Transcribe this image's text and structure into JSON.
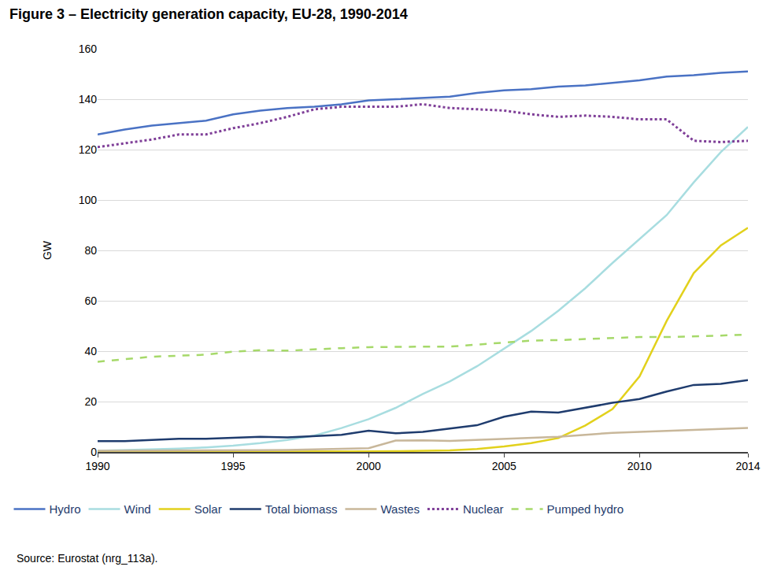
{
  "chart_data": {
    "type": "line",
    "title": "Figure 3 – Electricity generation capacity, EU-28, 1990-2014",
    "y_label": "GW",
    "annotations": [
      {
        "text": "Source: Eurostat (nrg_113a)."
      }
    ],
    "x": [
      1990,
      1991,
      1992,
      1993,
      1994,
      1995,
      1996,
      1997,
      1998,
      1999,
      2000,
      2001,
      2002,
      2003,
      2004,
      2005,
      2006,
      2007,
      2008,
      2009,
      2010,
      2011,
      2012,
      2013,
      2014
    ],
    "xlim": [
      1990,
      2014
    ],
    "xticks": [
      1990,
      1995,
      2000,
      2005,
      2010,
      2014
    ],
    "ylim": [
      0,
      160
    ],
    "yticks": [
      0,
      20,
      40,
      60,
      80,
      100,
      120,
      140,
      160
    ],
    "grid": true,
    "legend": "bottom",
    "series": [
      {
        "name": "Hydro",
        "color": "#4a72c4",
        "line_style": "solid",
        "values": [
          126,
          128,
          129.5,
          130.5,
          131.5,
          134,
          135.5,
          136.5,
          137,
          138,
          139.5,
          140,
          140.5,
          141,
          142.5,
          143.5,
          144,
          145,
          145.5,
          146.5,
          147.5,
          149,
          149.5,
          150.5,
          151
        ]
      },
      {
        "name": "Wind",
        "color": "#a8dde0",
        "line_style": "solid",
        "values": [
          0.5,
          0.7,
          1,
          1.3,
          1.8,
          2.5,
          3.5,
          4.8,
          6.5,
          9.5,
          13,
          17.5,
          23,
          28,
          34,
          41,
          48,
          56,
          65,
          75,
          84.5,
          94,
          107,
          119,
          129
        ]
      },
      {
        "name": "Solar",
        "color": "#e2d11c",
        "line_style": "solid",
        "values": [
          0,
          0,
          0,
          0,
          0,
          0,
          0,
          0,
          0,
          0.1,
          0.2,
          0.3,
          0.4,
          0.6,
          1.2,
          2.2,
          3.5,
          5.5,
          10.5,
          17,
          30,
          52,
          71,
          82,
          89
        ]
      },
      {
        "name": "Total biomass",
        "color": "#1f3c6e",
        "line_style": "solid",
        "values": [
          4.3,
          4.3,
          4.8,
          5.2,
          5.2,
          5.5,
          6,
          5.8,
          6.2,
          6.8,
          8.4,
          7.4,
          8,
          9.2,
          10.6,
          14,
          16,
          15.6,
          17.5,
          19.5,
          21,
          24,
          26.6,
          27,
          28.5
        ]
      },
      {
        "name": "Wastes",
        "color": "#c8b79a",
        "line_style": "solid",
        "values": [
          0.5,
          0.5,
          0.5,
          0.5,
          0.5,
          0.6,
          0.7,
          0.8,
          1,
          1.2,
          1.5,
          4.5,
          4.6,
          4.4,
          4.8,
          5.4,
          5.8,
          6,
          6.8,
          7.6,
          8,
          8.4,
          8.6,
          9.2,
          9.5
        ]
      },
      {
        "name": "Nuclear",
        "color": "#7f3f98",
        "line_style": "dot",
        "values": [
          121,
          122.5,
          124,
          126,
          126,
          128.5,
          130.5,
          133,
          136,
          137,
          137,
          137,
          138,
          136.5,
          136,
          135.5,
          134,
          133,
          133.5,
          133,
          132,
          132,
          123.5,
          123,
          123.5
        ]
      },
      {
        "name": "Pumped hydro",
        "color": "#a6d96a",
        "line_style": "dash",
        "values": [
          35.8,
          36.8,
          37.8,
          38.2,
          38.6,
          39.8,
          40.4,
          40.2,
          40.8,
          41.2,
          41.6,
          41.8,
          41.8,
          41.8,
          42.6,
          43.6,
          44.2,
          44.4,
          44.8,
          45.2,
          45.6,
          45.6,
          45.8,
          46.2,
          46.6
        ]
      }
    ]
  }
}
